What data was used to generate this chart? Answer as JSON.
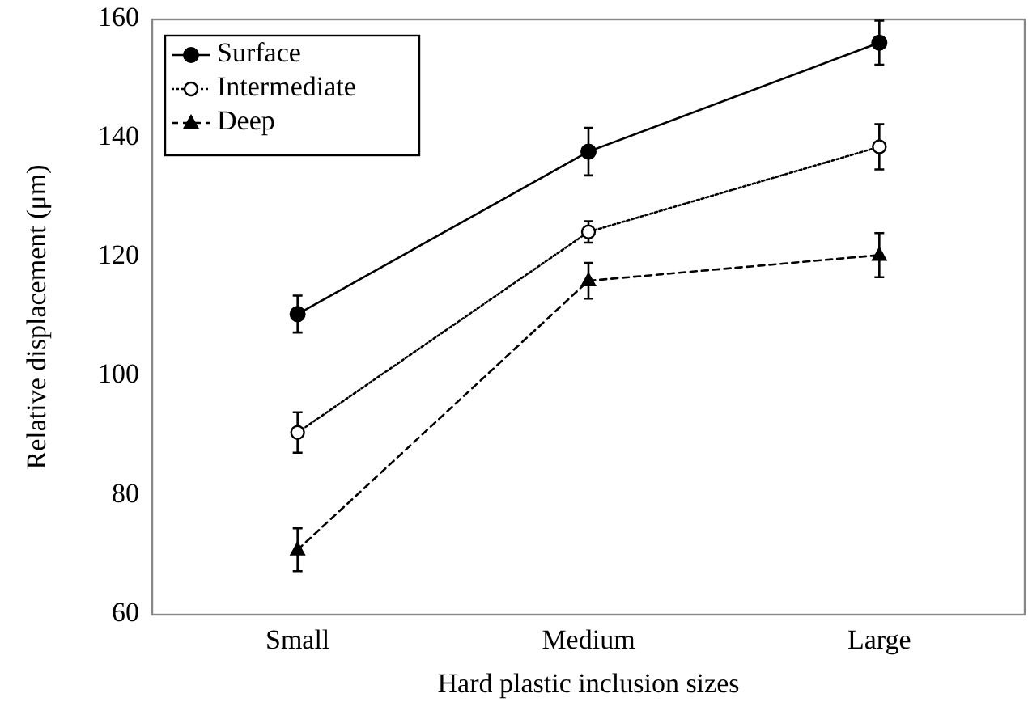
{
  "chart_data": {
    "type": "line",
    "xlabel": "Hard plastic inclusion sizes",
    "ylabel": "Relative displacement (μm)",
    "categories": [
      "Small",
      "Medium",
      "Large"
    ],
    "ylim": [
      60,
      160
    ],
    "yticks": [
      60,
      80,
      100,
      120,
      140,
      160
    ],
    "grid": false,
    "legend": "top left",
    "series": [
      {
        "name": "Surface",
        "color": "#000000",
        "marker": "circle",
        "line_style": "solid",
        "values": [
          110.5,
          137.8,
          156.1
        ],
        "errors": [
          3.1,
          4,
          3.7
        ]
      },
      {
        "name": "Intermediate",
        "color": "#000000",
        "marker": "open circle",
        "line_style": "dotted",
        "values": [
          90.6,
          124.3,
          138.6
        ],
        "errors": [
          3.4,
          1.8,
          3.8
        ]
      },
      {
        "name": "Deep",
        "color": "#000000",
        "marker": "triangle",
        "line_style": "dashed",
        "values": [
          70.9,
          116.1,
          120.4
        ],
        "errors": [
          3.6,
          3,
          3.7
        ]
      }
    ]
  }
}
